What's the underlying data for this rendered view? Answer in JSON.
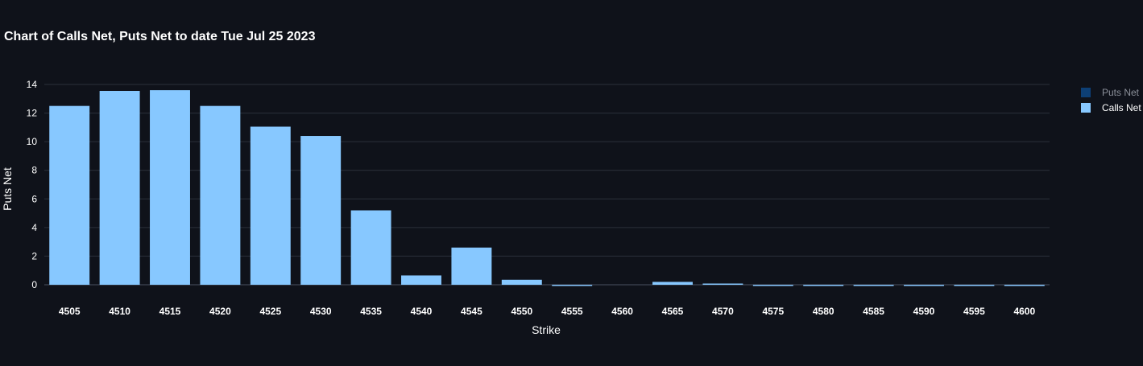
{
  "chart_data": {
    "type": "bar",
    "title": "Chart of Calls Net, Puts Net to date Tue Jul 25 2023",
    "xlabel": "Strike",
    "ylabel": "Puts Net",
    "categories": [
      "4505",
      "4510",
      "4515",
      "4520",
      "4525",
      "4530",
      "4535",
      "4540",
      "4545",
      "4550",
      "4555",
      "4560",
      "4565",
      "4570",
      "4575",
      "4580",
      "4585",
      "4590",
      "4595",
      "4600"
    ],
    "series": [
      {
        "name": "Puts Net",
        "color": "#0d3f75",
        "visible": false,
        "values": [
          0,
          0,
          0,
          0,
          0,
          0,
          0,
          0,
          0,
          0,
          0,
          0,
          0,
          0,
          0,
          0,
          0,
          0,
          0,
          0
        ]
      },
      {
        "name": "Calls Net",
        "color": "#87c8ff",
        "visible": true,
        "values": [
          12.5,
          13.55,
          13.6,
          12.5,
          11.05,
          10.4,
          5.2,
          0.65,
          2.6,
          0.35,
          -0.05,
          0,
          0.2,
          0.05,
          -0.04,
          -0.03,
          -0.04,
          -0.08,
          -0.08,
          -0.02
        ]
      }
    ],
    "ylim": [
      -0.5,
      14
    ],
    "yticks": [
      0,
      2,
      4,
      6,
      8,
      10,
      12,
      14
    ],
    "grid": true,
    "legend": "top-right"
  }
}
